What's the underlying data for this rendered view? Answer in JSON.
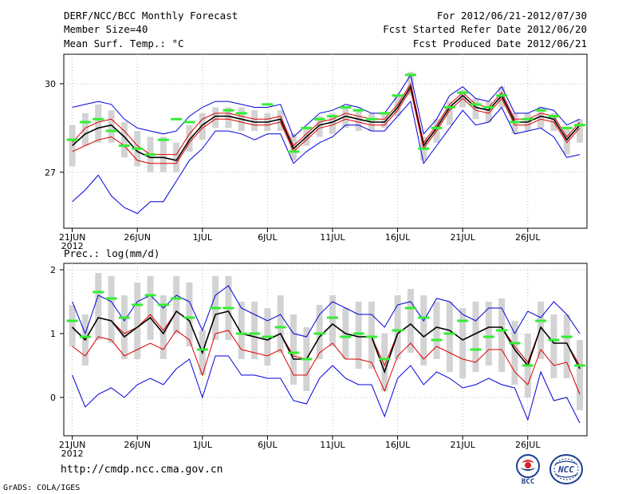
{
  "header": {
    "left_line1": "DERF/NCC/BCC Monthly Forecast",
    "left_line2": "Member Size=40",
    "left_line3": "Mean Surf. Temp.: °C",
    "right_line1": "For 2012/06/21-2012/07/30",
    "right_line2": "Fcst Started Refer Date 2012/06/20",
    "right_line3": "Fcst Produced Date 2012/06/21"
  },
  "panel2_label": "Prec.: log(mm/d)",
  "footer": {
    "url": "http://cmdp.ncc.cma.gov.cn",
    "credit": "GrADS: COLA/IGES",
    "logo1_text": "BCC",
    "logo2_text": "NCC"
  },
  "colors": {
    "box": "#d3d3d3",
    "green": "#33ee33",
    "blue": "#0000dd",
    "red": "#dd0000",
    "black": "#000000",
    "grid": "#bbbbbb"
  },
  "chart_data": [
    {
      "type": "line",
      "title": "Mean Surf. Temp.: °C",
      "x_tick_labels": [
        "21JUN",
        "26JUN",
        "1JUL",
        "6JUL",
        "11JUL",
        "16JUL",
        "21JUL",
        "26JUL"
      ],
      "x_year_label": "2012",
      "x_tick_days": [
        1,
        6,
        11,
        16,
        21,
        26,
        31,
        36
      ],
      "days": 40,
      "y_ticks": [
        27,
        30
      ],
      "ylim": [
        25.1,
        31.0
      ],
      "series": [
        {
          "name": "max",
          "color": "blue",
          "values": [
            29.2,
            29.3,
            29.4,
            29.3,
            28.8,
            28.5,
            28.4,
            28.3,
            28.4,
            28.9,
            29.2,
            29.4,
            29.4,
            29.3,
            29.2,
            29.2,
            29.3,
            28.2,
            28.6,
            29.0,
            29.1,
            29.3,
            29.2,
            29.0,
            29.0,
            29.6,
            30.3,
            28.3,
            28.8,
            29.6,
            29.9,
            29.5,
            29.4,
            29.9,
            29.0,
            29.0,
            29.2,
            29.1,
            28.6,
            28.8
          ]
        },
        {
          "name": "p90",
          "color": "red",
          "values": [
            28.0,
            28.5,
            28.7,
            28.8,
            28.4,
            27.9,
            27.6,
            27.6,
            27.6,
            28.3,
            28.8,
            29.0,
            29.0,
            28.9,
            28.8,
            28.8,
            28.9,
            27.9,
            28.3,
            28.7,
            28.8,
            29.0,
            28.9,
            28.8,
            28.8,
            29.3,
            30.0,
            28.0,
            28.6,
            29.3,
            29.7,
            29.3,
            29.2,
            29.7,
            28.8,
            28.8,
            29.0,
            28.9,
            28.2,
            28.7
          ]
        },
        {
          "name": "mean",
          "color": "black",
          "values": [
            27.9,
            28.3,
            28.5,
            28.6,
            28.2,
            27.7,
            27.5,
            27.5,
            27.4,
            28.1,
            28.6,
            28.9,
            28.9,
            28.8,
            28.7,
            28.7,
            28.8,
            27.8,
            28.2,
            28.6,
            28.7,
            28.9,
            28.8,
            28.7,
            28.7,
            29.2,
            29.9,
            27.9,
            28.5,
            29.2,
            29.6,
            29.2,
            29.1,
            29.6,
            28.7,
            28.7,
            28.9,
            28.8,
            28.1,
            28.6
          ]
        },
        {
          "name": "p10",
          "color": "red",
          "values": [
            27.7,
            27.9,
            28.1,
            28.2,
            27.9,
            27.4,
            27.3,
            27.3,
            27.3,
            28.0,
            28.5,
            28.8,
            28.8,
            28.7,
            28.6,
            28.6,
            28.7,
            27.7,
            28.1,
            28.5,
            28.6,
            28.8,
            28.7,
            28.6,
            28.6,
            29.1,
            29.8,
            27.8,
            28.4,
            29.1,
            29.5,
            29.1,
            29.0,
            29.5,
            28.6,
            28.6,
            28.8,
            28.7,
            28.0,
            28.5
          ]
        },
        {
          "name": "min",
          "color": "blue",
          "values": [
            26.0,
            26.4,
            26.9,
            26.2,
            25.8,
            25.6,
            26.0,
            26.0,
            26.7,
            27.4,
            27.8,
            28.4,
            28.4,
            28.3,
            28.1,
            28.3,
            28.3,
            27.3,
            27.7,
            28.0,
            28.2,
            28.6,
            28.6,
            28.4,
            28.4,
            28.9,
            29.4,
            27.3,
            27.9,
            28.5,
            29.1,
            28.6,
            28.7,
            29.2,
            28.3,
            28.4,
            28.5,
            28.2,
            27.5,
            27.6
          ]
        }
      ],
      "boxes": {
        "upper": [
          28.6,
          29.0,
          29.3,
          29.1,
          28.7,
          28.4,
          28.2,
          28.2,
          28.0,
          28.6,
          29.0,
          29.2,
          29.2,
          29.2,
          29.1,
          29.0,
          29.1,
          28.3,
          28.5,
          28.9,
          29.0,
          29.2,
          29.1,
          29.0,
          29.0,
          29.6,
          30.4,
          28.2,
          28.8,
          29.4,
          29.8,
          29.5,
          29.4,
          29.9,
          29.0,
          29.0,
          29.2,
          29.0,
          28.5,
          28.8
        ],
        "lower": [
          27.2,
          27.9,
          28.0,
          28.0,
          27.5,
          27.2,
          27.0,
          27.0,
          27.0,
          27.7,
          28.1,
          28.5,
          28.5,
          28.4,
          28.4,
          28.4,
          28.4,
          27.4,
          27.9,
          28.2,
          28.3,
          28.5,
          28.4,
          28.4,
          28.5,
          28.9,
          29.6,
          27.4,
          28.0,
          28.6,
          29.2,
          28.8,
          28.7,
          29.2,
          28.3,
          28.4,
          28.5,
          28.4,
          27.6,
          28.0
        ]
      },
      "green_marks": [
        28.1,
        28.7,
        28.8,
        28.4,
        27.9,
        27.8,
        27.6,
        28.1,
        28.8,
        28.7,
        null,
        null,
        29.1,
        29.0,
        null,
        29.3,
        null,
        27.7,
        28.5,
        28.8,
        28.9,
        29.2,
        29.1,
        28.8,
        29.0,
        29.6,
        30.3,
        27.8,
        28.5,
        29.2,
        29.7,
        29.3,
        29.2,
        29.6,
        28.7,
        28.8,
        29.1,
        28.9,
        28.5,
        28.6
      ]
    },
    {
      "type": "line",
      "title": "Prec.: log(mm/d)",
      "x_tick_labels": [
        "21JUN",
        "26JUN",
        "1JUL",
        "6JUL",
        "11JUL",
        "16JUL",
        "21JUL",
        "26JUL"
      ],
      "x_year_label": "2012",
      "x_tick_days": [
        1,
        6,
        11,
        16,
        21,
        26,
        31,
        36
      ],
      "days": 40,
      "y_ticks": [
        0,
        1,
        2
      ],
      "ylim": [
        -0.6,
        2.1
      ],
      "series": [
        {
          "name": "max",
          "color": "blue",
          "values": [
            1.5,
            1.0,
            1.6,
            1.5,
            1.2,
            1.5,
            1.6,
            1.4,
            1.6,
            1.5,
            1.05,
            1.6,
            1.75,
            1.4,
            1.3,
            1.2,
            1.3,
            1.0,
            0.95,
            1.3,
            1.5,
            1.4,
            1.3,
            1.3,
            1.1,
            1.45,
            1.5,
            1.2,
            1.55,
            1.5,
            1.3,
            1.2,
            1.4,
            1.4,
            1.0,
            1.35,
            1.25,
            1.5,
            1.3,
            1.0
          ]
        },
        {
          "name": "p90",
          "color": "red",
          "values": [
            1.1,
            0.9,
            1.25,
            1.2,
            1.0,
            1.1,
            1.3,
            1.05,
            1.35,
            1.2,
            0.7,
            1.3,
            1.35,
            1.0,
            0.95,
            0.9,
            1.0,
            0.65,
            0.6,
            0.95,
            1.15,
            1.0,
            0.95,
            0.95,
            0.5,
            1.0,
            1.15,
            0.95,
            1.1,
            1.05,
            0.9,
            1.0,
            1.1,
            1.1,
            0.8,
            0.55,
            1.1,
            0.85,
            0.85,
            0.5
          ]
        },
        {
          "name": "mean",
          "color": "black",
          "values": [
            1.1,
            0.9,
            1.25,
            1.2,
            0.95,
            1.1,
            1.25,
            1.0,
            1.35,
            1.2,
            0.7,
            1.3,
            1.35,
            1.0,
            0.95,
            0.9,
            1.0,
            0.6,
            0.6,
            0.95,
            1.15,
            1.0,
            0.95,
            0.95,
            0.4,
            1.0,
            1.15,
            0.95,
            1.1,
            1.05,
            0.9,
            1.0,
            1.1,
            1.1,
            0.75,
            0.5,
            1.1,
            0.85,
            0.85,
            0.45
          ]
        },
        {
          "name": "p10",
          "color": "red",
          "values": [
            0.8,
            0.65,
            0.95,
            0.9,
            0.65,
            0.75,
            0.85,
            0.75,
            1.05,
            0.9,
            0.35,
            1.0,
            1.05,
            0.75,
            0.7,
            0.65,
            0.75,
            0.35,
            0.35,
            0.7,
            0.85,
            0.6,
            0.6,
            0.55,
            0.1,
            0.65,
            0.85,
            0.6,
            0.8,
            0.7,
            0.6,
            0.55,
            0.75,
            0.75,
            0.4,
            0.2,
            0.75,
            0.5,
            0.55,
            0.05
          ]
        },
        {
          "name": "min",
          "color": "blue",
          "values": [
            0.35,
            -0.15,
            0.05,
            0.15,
            0.0,
            0.2,
            0.3,
            0.2,
            0.45,
            0.6,
            0.0,
            0.65,
            0.65,
            0.35,
            0.35,
            0.3,
            0.3,
            -0.05,
            -0.1,
            0.3,
            0.5,
            0.3,
            0.2,
            0.2,
            -0.3,
            0.3,
            0.5,
            0.2,
            0.4,
            0.3,
            0.15,
            0.2,
            0.3,
            0.2,
            0.15,
            -0.35,
            0.4,
            -0.05,
            0.0,
            -0.4
          ]
        }
      ],
      "boxes": {
        "upper": [
          1.45,
          1.3,
          1.95,
          1.9,
          1.6,
          1.8,
          1.9,
          1.6,
          1.9,
          1.8,
          1.05,
          1.9,
          1.9,
          1.5,
          1.5,
          1.4,
          1.6,
          1.3,
          1.1,
          1.45,
          1.6,
          1.4,
          1.5,
          1.5,
          1.0,
          1.6,
          1.7,
          1.6,
          1.5,
          1.5,
          1.4,
          1.5,
          1.5,
          1.55,
          1.2,
          1.0,
          1.5,
          1.3,
          1.3,
          0.9
        ],
        "lower": [
          0.8,
          0.5,
          0.9,
          0.85,
          0.6,
          0.6,
          0.9,
          0.6,
          1.0,
          0.8,
          0.35,
          0.9,
          0.9,
          0.6,
          0.6,
          0.5,
          0.7,
          0.2,
          0.1,
          0.6,
          0.8,
          0.6,
          0.45,
          0.45,
          0.1,
          0.6,
          0.7,
          0.5,
          0.6,
          0.4,
          0.3,
          0.4,
          0.5,
          0.4,
          0.2,
          0.0,
          0.6,
          0.3,
          0.3,
          -0.2
        ]
      },
      "green_marks": [
        1.2,
        0.95,
        1.65,
        1.55,
        1.25,
        1.45,
        1.6,
        1.45,
        1.55,
        1.25,
        0.75,
        1.4,
        1.4,
        1.0,
        1.0,
        0.95,
        1.1,
        0.7,
        0.6,
        1.0,
        1.25,
        0.95,
        1.0,
        0.95,
        0.6,
        1.05,
        1.4,
        1.25,
        0.9,
        1.0,
        1.2,
        0.75,
        0.95,
        1.05,
        0.85,
        0.5,
        1.2,
        0.9,
        0.95,
        0.5
      ]
    }
  ]
}
